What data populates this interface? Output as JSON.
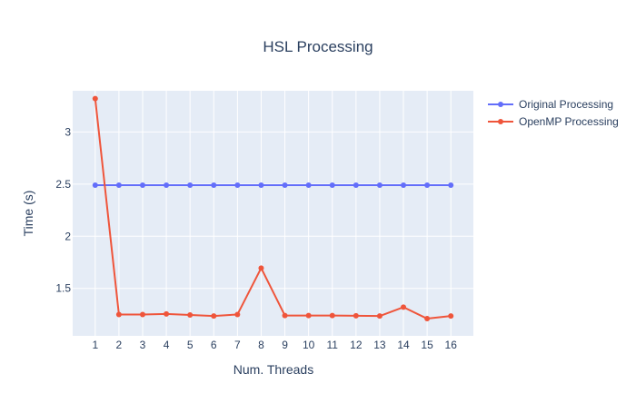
{
  "chart_data": {
    "type": "line",
    "title": "HSL Processing",
    "xlabel": "Num. Threads",
    "ylabel": "Time (s)",
    "x": [
      1,
      2,
      3,
      4,
      5,
      6,
      7,
      8,
      9,
      10,
      11,
      12,
      13,
      14,
      15,
      16
    ],
    "xlim": [
      0.05,
      16.95
    ],
    "ylim": [
      1.045,
      3.395
    ],
    "yticks": [
      1.5,
      2,
      2.5,
      3
    ],
    "ytick_labels": [
      "1.5",
      "2",
      "2.5",
      "3"
    ],
    "xtick_labels": [
      "1",
      "2",
      "3",
      "4",
      "5",
      "6",
      "7",
      "8",
      "9",
      "10",
      "11",
      "12",
      "13",
      "14",
      "15",
      "16"
    ],
    "grid": true,
    "legend_position": "top-right",
    "series": [
      {
        "name": "Original Processing",
        "color": "#636efa",
        "values": [
          2.49,
          2.49,
          2.49,
          2.49,
          2.49,
          2.49,
          2.49,
          2.49,
          2.49,
          2.49,
          2.49,
          2.49,
          2.49,
          2.49,
          2.49,
          2.49
        ]
      },
      {
        "name": "OpenMP Processing",
        "color": "#ef553b",
        "values": [
          3.32,
          1.25,
          1.25,
          1.255,
          1.245,
          1.235,
          1.25,
          1.695,
          1.24,
          1.24,
          1.24,
          1.238,
          1.235,
          1.32,
          1.21,
          1.235
        ]
      }
    ]
  }
}
